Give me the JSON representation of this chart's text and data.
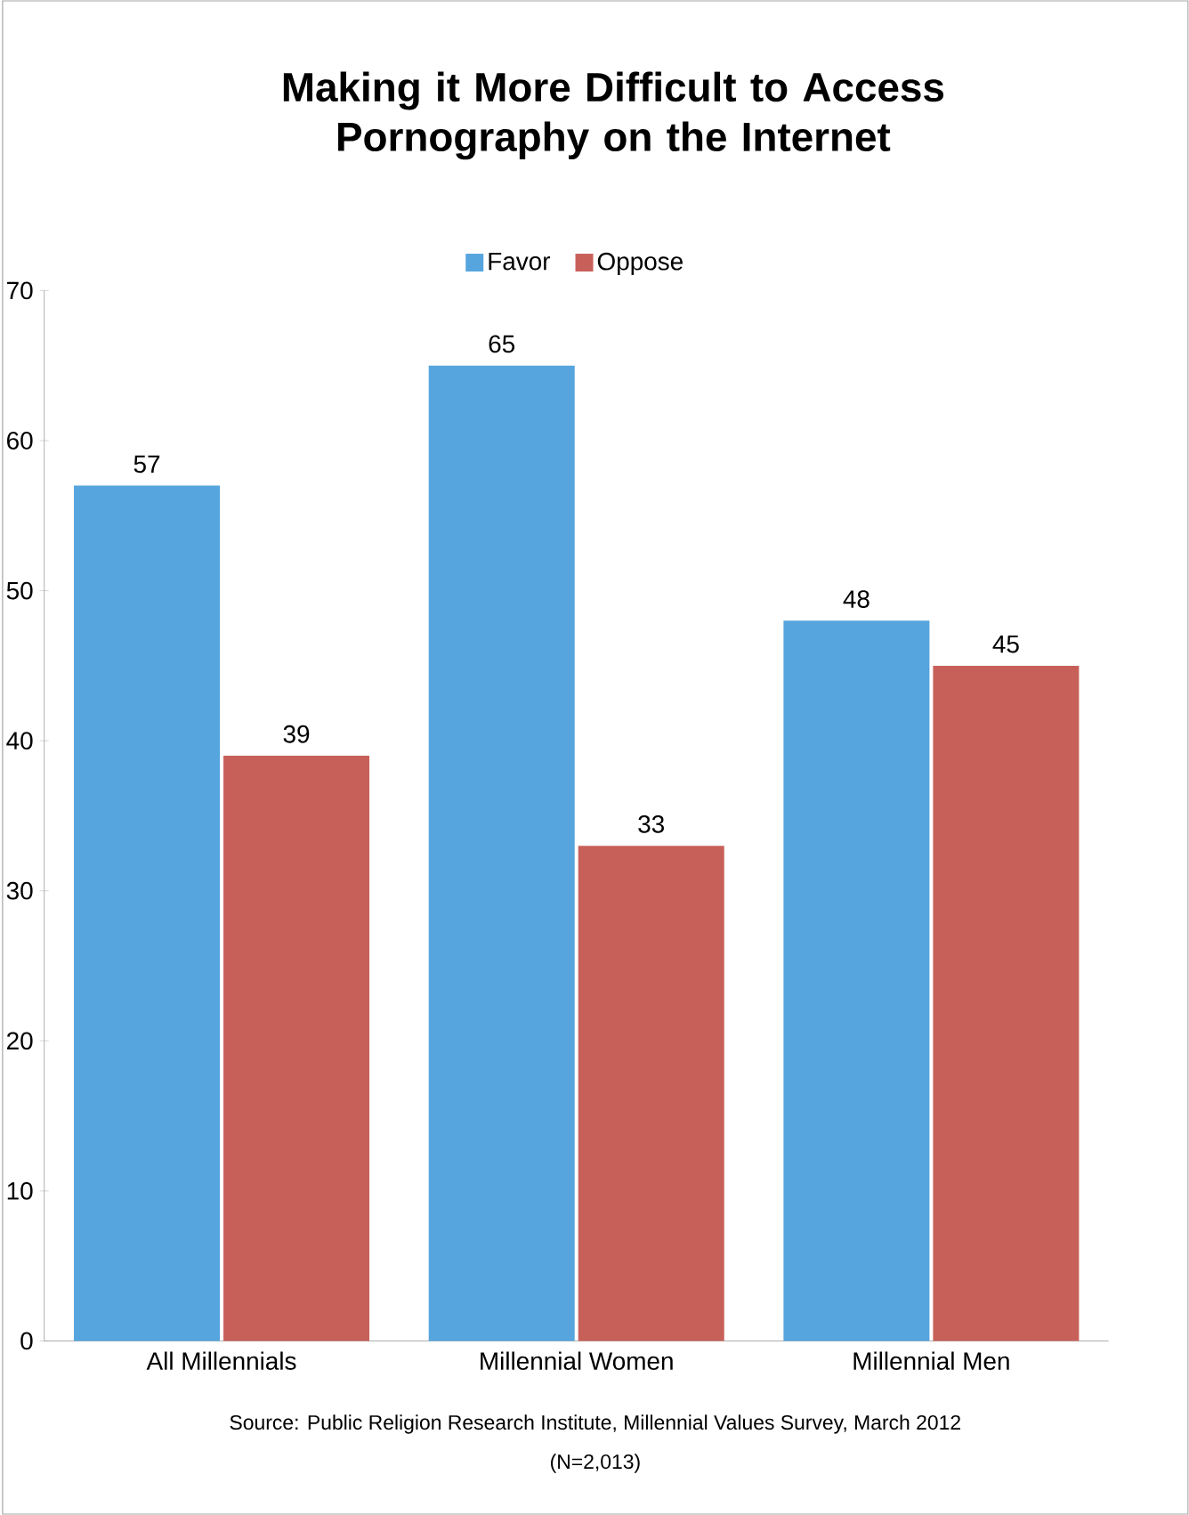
{
  "chart_data": {
    "type": "bar",
    "title": "Making it More Difficult to Access Pornography on the Internet",
    "categories": [
      "All Millennials",
      "Millennial Women",
      "Millennial Men"
    ],
    "series": [
      {
        "name": "Favor",
        "color": "#56a5de",
        "values": [
          57,
          65,
          48
        ]
      },
      {
        "name": "Oppose",
        "color": "#c8605a",
        "values": [
          39,
          33,
          45
        ]
      }
    ],
    "ylim": [
      0,
      70
    ],
    "yticks": [
      0,
      10,
      20,
      30,
      40,
      50,
      60,
      70
    ],
    "grid": false,
    "legend": "top",
    "data_labels": true,
    "annotations": [
      "Source: Public Religion Research Institute, Millennial Values Survey, March 2012",
      "(N=2,013)"
    ]
  }
}
